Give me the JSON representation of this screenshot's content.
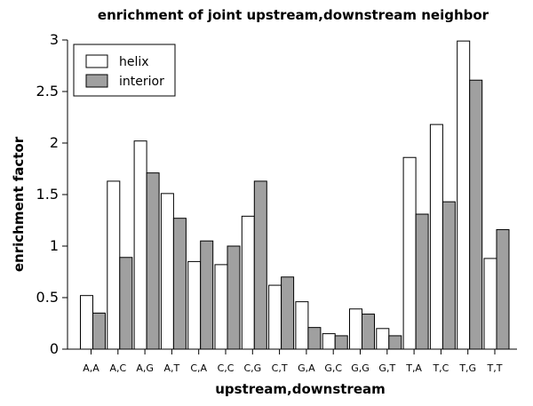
{
  "chart_data": {
    "type": "bar",
    "title": "enrichment of joint upstream,downstream neighbor",
    "xlabel": "upstream,downstream",
    "ylabel": "enrichment factor",
    "ylim": [
      0,
      3
    ],
    "yticks": [
      "0",
      "0.5",
      "1",
      "1.5",
      "2",
      "2.5",
      "3"
    ],
    "grid": false,
    "legend_position": "top-left",
    "categories": [
      "A,A",
      "A,C",
      "A,G",
      "A,T",
      "C,A",
      "C,C",
      "C,G",
      "C,T",
      "G,A",
      "G,C",
      "G,G",
      "G,T",
      "T,A",
      "T,C",
      "T,G",
      "T,T"
    ],
    "series": [
      {
        "name": "helix",
        "color": "#ffffff",
        "values": [
          0.52,
          1.63,
          2.02,
          1.51,
          0.85,
          0.82,
          1.29,
          0.62,
          0.46,
          0.15,
          0.39,
          0.2,
          1.86,
          2.18,
          2.99,
          0.88
        ]
      },
      {
        "name": "interior",
        "color": "#a0a0a0",
        "values": [
          0.35,
          0.89,
          1.71,
          1.27,
          1.05,
          1.0,
          1.63,
          0.7,
          0.21,
          0.13,
          0.34,
          0.13,
          1.31,
          1.43,
          2.61,
          1.16
        ]
      }
    ]
  }
}
